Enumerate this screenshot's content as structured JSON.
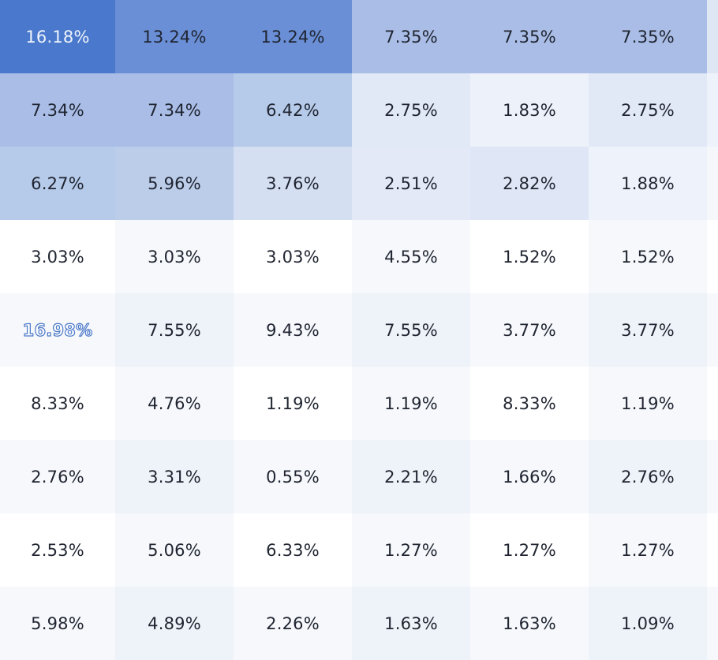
{
  "table": {
    "rows": [
      {
        "cells": [
          {
            "value": "16.18%",
            "bg": "#4a78cc",
            "text": "light"
          },
          {
            "value": "13.24%",
            "bg": "#6a8fd6",
            "text": "dark"
          },
          {
            "value": "13.24%",
            "bg": "#6a8fd6",
            "text": "dark"
          },
          {
            "value": "7.35%",
            "bg": "#a9bde6",
            "text": "dark"
          },
          {
            "value": "7.35%",
            "bg": "#a9bde6",
            "text": "dark"
          },
          {
            "value": "7.35%",
            "bg": "#a9bde6",
            "text": "dark"
          }
        ],
        "edge": "#dfe6f4"
      },
      {
        "cells": [
          {
            "value": "7.34%",
            "bg": "#a9bde6",
            "text": "dark"
          },
          {
            "value": "7.34%",
            "bg": "#a9bde6",
            "text": "dark"
          },
          {
            "value": "6.42%",
            "bg": "#b6cae9",
            "text": "dark"
          },
          {
            "value": "2.75%",
            "bg": "#e1e8f6",
            "text": "dark"
          },
          {
            "value": "1.83%",
            "bg": "#edf1fa",
            "text": "dark"
          },
          {
            "value": "2.75%",
            "bg": "#e1e8f6",
            "text": "dark"
          }
        ],
        "edge": "#eef2fa"
      },
      {
        "cells": [
          {
            "value": "6.27%",
            "bg": "#b6cae9",
            "text": "dark"
          },
          {
            "value": "5.96%",
            "bg": "#bccdea",
            "text": "dark"
          },
          {
            "value": "3.76%",
            "bg": "#d4dff2",
            "text": "dark"
          },
          {
            "value": "2.51%",
            "bg": "#e3e9f6",
            "text": "dark"
          },
          {
            "value": "2.82%",
            "bg": "#dfe7f6",
            "text": "dark"
          },
          {
            "value": "1.88%",
            "bg": "#eef2fa",
            "text": "dark"
          }
        ],
        "edge": "#f5f7fb"
      },
      {
        "cells": [
          {
            "value": "3.03%",
            "bg": "#ffffff",
            "text": "dark"
          },
          {
            "value": "3.03%",
            "bg": "#f6f8fc",
            "text": "dark"
          },
          {
            "value": "3.03%",
            "bg": "#ffffff",
            "text": "dark"
          },
          {
            "value": "4.55%",
            "bg": "#f6f8fc",
            "text": "dark"
          },
          {
            "value": "1.52%",
            "bg": "#ffffff",
            "text": "dark"
          },
          {
            "value": "1.52%",
            "bg": "#f6f8fc",
            "text": "dark"
          }
        ],
        "edge": "#ffffff"
      },
      {
        "cells": [
          {
            "value": "16.98%",
            "bg": "#f6f8fc",
            "text": "outline"
          },
          {
            "value": "7.55%",
            "bg": "#eef2f9",
            "text": "dark"
          },
          {
            "value": "9.43%",
            "bg": "#f6f8fc",
            "text": "dark"
          },
          {
            "value": "7.55%",
            "bg": "#eef2f9",
            "text": "dark"
          },
          {
            "value": "3.77%",
            "bg": "#f6f8fc",
            "text": "dark"
          },
          {
            "value": "3.77%",
            "bg": "#eef2f9",
            "text": "dark"
          }
        ],
        "edge": "#f6f8fc"
      },
      {
        "cells": [
          {
            "value": "8.33%",
            "bg": "#ffffff",
            "text": "dark"
          },
          {
            "value": "4.76%",
            "bg": "#f6f8fc",
            "text": "dark"
          },
          {
            "value": "1.19%",
            "bg": "#ffffff",
            "text": "dark"
          },
          {
            "value": "1.19%",
            "bg": "#f6f8fc",
            "text": "dark"
          },
          {
            "value": "8.33%",
            "bg": "#ffffff",
            "text": "dark"
          },
          {
            "value": "1.19%",
            "bg": "#f6f8fc",
            "text": "dark"
          }
        ],
        "edge": "#ffffff"
      },
      {
        "cells": [
          {
            "value": "2.76%",
            "bg": "#f6f8fc",
            "text": "dark"
          },
          {
            "value": "3.31%",
            "bg": "#eef2f9",
            "text": "dark"
          },
          {
            "value": "0.55%",
            "bg": "#f6f8fc",
            "text": "dark"
          },
          {
            "value": "2.21%",
            "bg": "#eef2f9",
            "text": "dark"
          },
          {
            "value": "1.66%",
            "bg": "#f6f8fc",
            "text": "dark"
          },
          {
            "value": "2.76%",
            "bg": "#eef2f9",
            "text": "dark"
          }
        ],
        "edge": "#f6f8fc"
      },
      {
        "cells": [
          {
            "value": "2.53%",
            "bg": "#ffffff",
            "text": "dark"
          },
          {
            "value": "5.06%",
            "bg": "#f6f8fc",
            "text": "dark"
          },
          {
            "value": "6.33%",
            "bg": "#ffffff",
            "text": "dark"
          },
          {
            "value": "1.27%",
            "bg": "#f6f8fc",
            "text": "dark"
          },
          {
            "value": "1.27%",
            "bg": "#ffffff",
            "text": "dark"
          },
          {
            "value": "1.27%",
            "bg": "#f6f8fc",
            "text": "dark"
          }
        ],
        "edge": "#ffffff"
      },
      {
        "cells": [
          {
            "value": "5.98%",
            "bg": "#f6f8fc",
            "text": "dark"
          },
          {
            "value": "4.89%",
            "bg": "#eef2f9",
            "text": "dark"
          },
          {
            "value": "2.26%",
            "bg": "#f6f8fc",
            "text": "dark"
          },
          {
            "value": "1.63%",
            "bg": "#eef2f9",
            "text": "dark"
          },
          {
            "value": "1.63%",
            "bg": "#f6f8fc",
            "text": "dark"
          },
          {
            "value": "1.09%",
            "bg": "#eef2f9",
            "text": "dark"
          }
        ],
        "edge": "#f6f8fc"
      }
    ]
  }
}
